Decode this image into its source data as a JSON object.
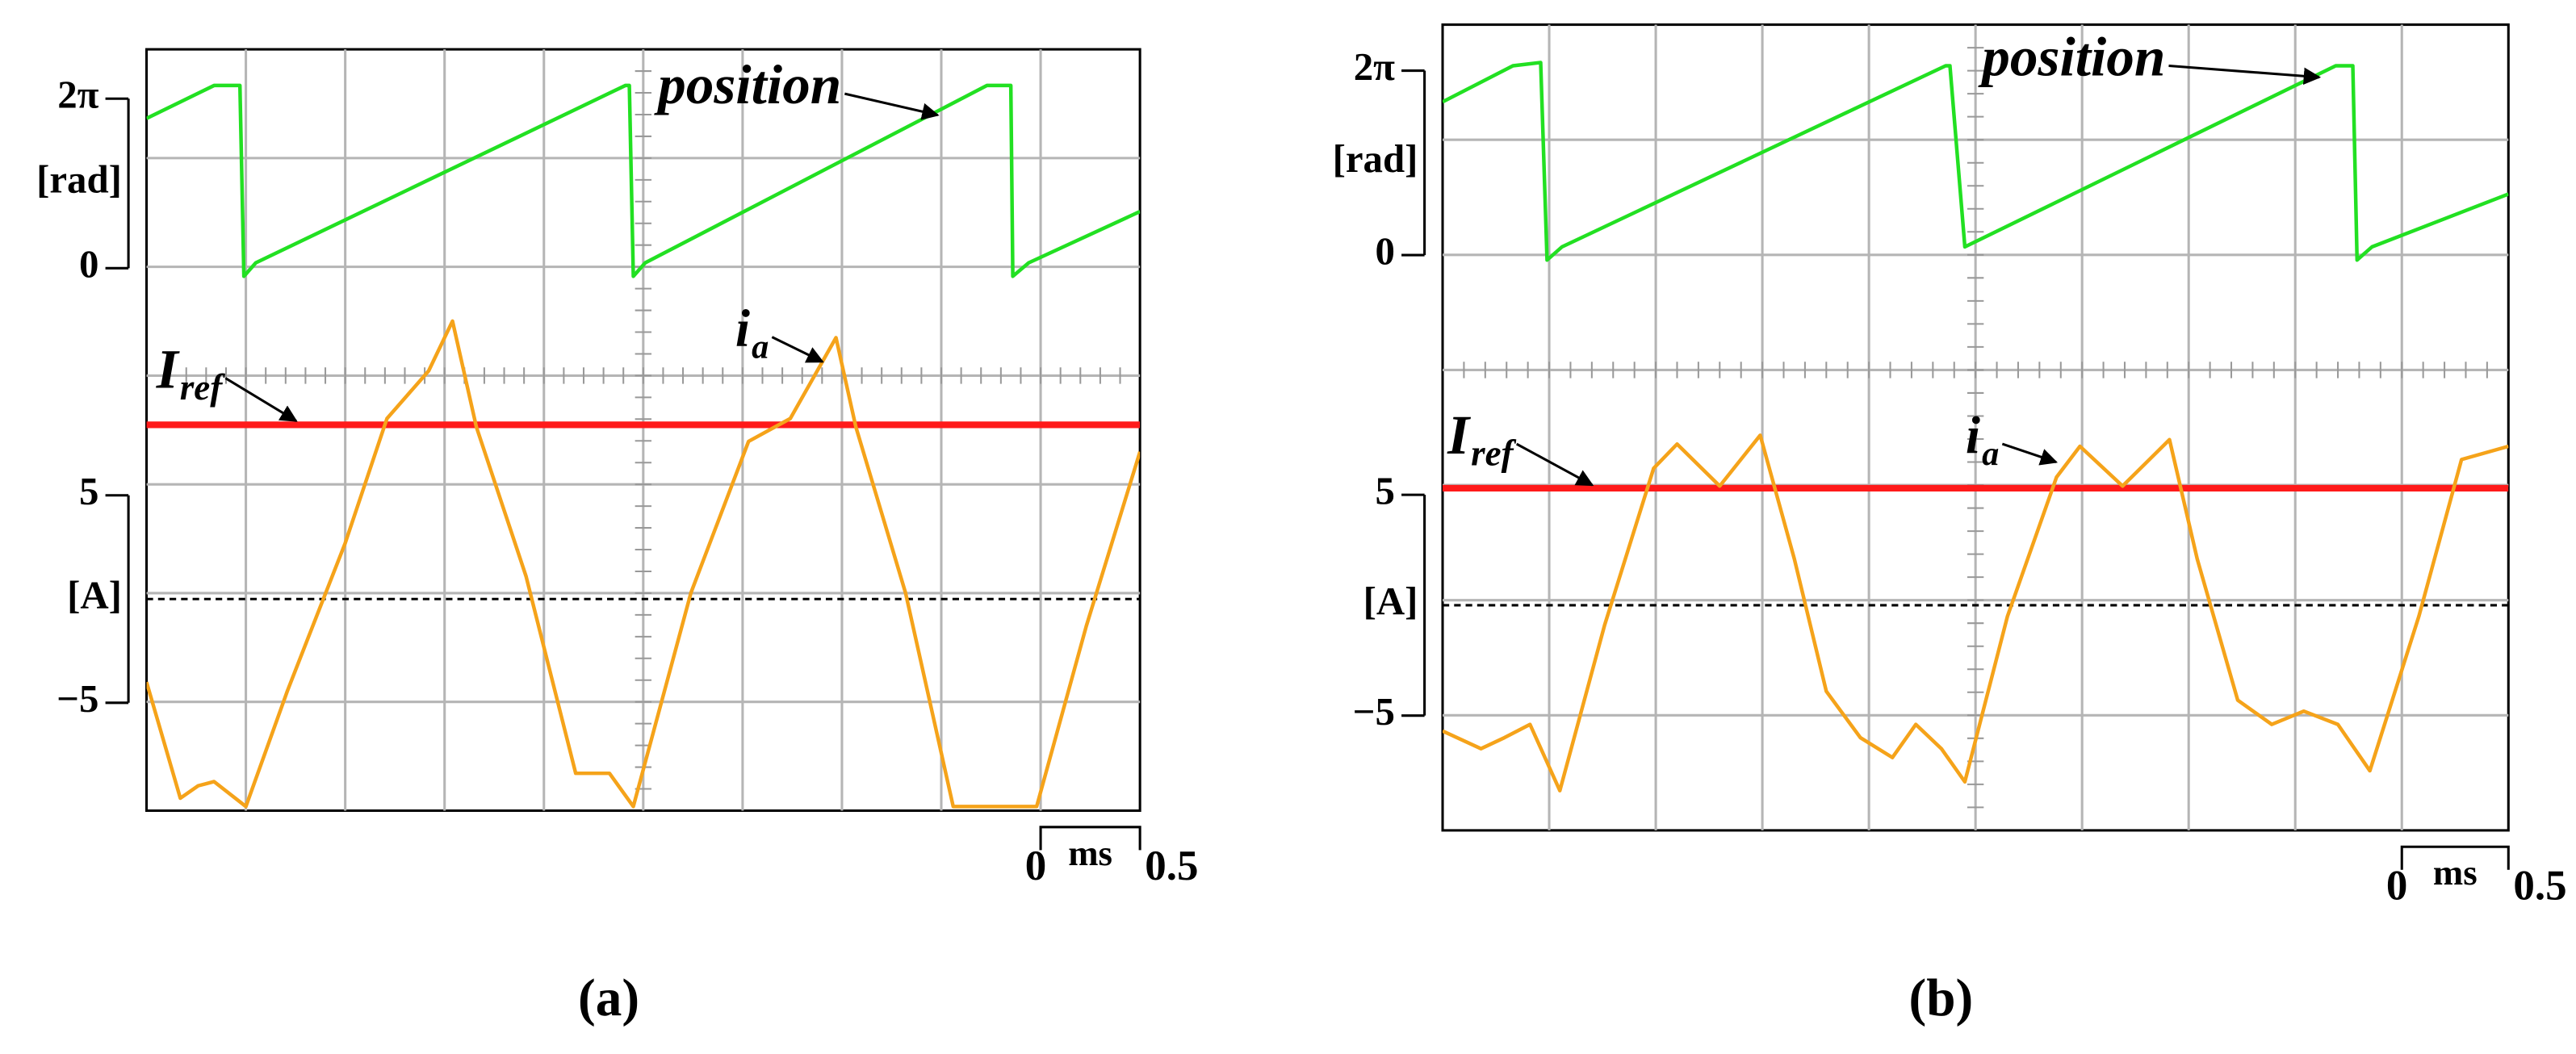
{
  "chart_data": [
    {
      "type": "line",
      "panel_label": "(a)",
      "y_unit": "[A]",
      "y2_unit": "[rad]",
      "xlim": [
        0,
        5
      ],
      "ylim": [
        -10.2,
        26.5
      ],
      "yticks": [
        {
          "value": -5,
          "label": "−5"
        },
        5
      ],
      "y2lim": [
        -20.1,
        8.11
      ],
      "y2ticks": [
        0,
        {
          "value": 6.283,
          "label": "2π"
        }
      ],
      "zero_line": 0,
      "scale_bar": {
        "start": 0,
        "end": 0.5,
        "unit": "ms"
      },
      "series": [
        {
          "name": "position",
          "color": "#22e022",
          "axis": "y2",
          "x": [
            0,
            0.34,
            0.47,
            0.49,
            0.55,
            2.41,
            2.43,
            2.45,
            2.51,
            4.23,
            4.35,
            4.36,
            4.44,
            5.0
          ],
          "values": [
            5.55,
            6.77,
            6.77,
            -0.3,
            0.2,
            6.77,
            6.77,
            -0.3,
            0.2,
            6.77,
            6.77,
            -0.3,
            0.2,
            2.1
          ]
        },
        {
          "name": "I",
          "name_sub": "ref",
          "color": "#ff1a1a",
          "x": [
            0,
            5
          ],
          "values": [
            8.4,
            8.4
          ]
        },
        {
          "name": "i",
          "name_sub": "a",
          "color": "#f5a31a",
          "x": [
            0,
            0.17,
            0.26,
            0.34,
            0.5,
            0.71,
            1.0,
            1.21,
            1.42,
            1.54,
            1.66,
            1.91,
            2.16,
            2.33,
            2.45,
            2.74,
            3.03,
            3.24,
            3.47,
            3.57,
            3.82,
            4.06,
            4.48,
            4.73,
            5.0
          ],
          "values": [
            -4.0,
            -9.6,
            -9.0,
            -8.8,
            -10.0,
            -4.4,
            2.7,
            8.7,
            11.0,
            13.4,
            8.3,
            1.1,
            -8.4,
            -8.4,
            -10.0,
            0.3,
            7.6,
            8.7,
            12.6,
            8.3,
            0.3,
            -10.0,
            -10.0,
            -1.3,
            7.1
          ]
        }
      ]
    },
    {
      "type": "line",
      "panel_label": "(b)",
      "y_unit": "[A]",
      "y2_unit": "[rad]",
      "xlim": [
        0,
        5
      ],
      "ylim": [
        -10.2,
        26.3
      ],
      "yticks": [
        {
          "value": -5,
          "label": "−5"
        },
        5
      ],
      "y2lim": [
        -19.6,
        7.85
      ],
      "y2ticks": [
        0,
        {
          "value": 6.283,
          "label": "2π"
        }
      ],
      "zero_line": 0,
      "scale_bar": {
        "start": 0,
        "end": 0.5,
        "unit": "ms"
      },
      "series": [
        {
          "name": "position",
          "color": "#22e022",
          "axis": "y2",
          "x": [
            0,
            0.33,
            0.46,
            0.49,
            0.56,
            2.36,
            2.38,
            2.45,
            4.19,
            4.27,
            4.29,
            4.36,
            5.0
          ],
          "values": [
            5.22,
            6.45,
            6.56,
            -0.17,
            0.28,
            6.45,
            6.45,
            0.28,
            6.45,
            6.45,
            -0.17,
            0.28,
            2.08
          ]
        },
        {
          "name": "I",
          "name_sub": "ref",
          "color": "#ff1a1a",
          "x": [
            0,
            5
          ],
          "values": [
            5.3,
            5.3
          ]
        },
        {
          "name": "i",
          "name_sub": "a",
          "color": "#f5a31a",
          "x": [
            0,
            0.18,
            0.29,
            0.41,
            0.55,
            0.76,
            0.99,
            1.1,
            1.3,
            1.49,
            1.65,
            1.8,
            1.96,
            2.11,
            2.22,
            2.34,
            2.45,
            2.65,
            2.88,
            2.99,
            3.19,
            3.41,
            3.54,
            3.73,
            3.89,
            4.04,
            4.2,
            4.35,
            4.58,
            4.78,
            5.0
          ],
          "values": [
            -5.7,
            -6.5,
            -6.0,
            -5.4,
            -8.4,
            -0.9,
            6.2,
            7.3,
            5.4,
            7.7,
            2.1,
            -3.9,
            -6.0,
            -6.9,
            -5.4,
            -6.5,
            -8.0,
            -0.5,
            5.8,
            7.2,
            5.4,
            7.5,
            2.1,
            -4.3,
            -5.4,
            -4.8,
            -5.4,
            -7.5,
            -0.5,
            6.6,
            7.2
          ]
        }
      ]
    }
  ]
}
